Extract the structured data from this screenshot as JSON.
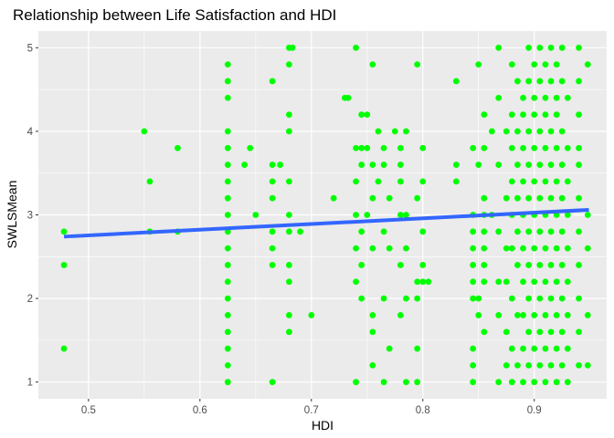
{
  "chart_data": {
    "type": "scatter",
    "title": "Relationship between Life Satisfaction and HDI",
    "xlabel": "HDI",
    "ylabel": "SWLSMean",
    "xlim": [
      0.455,
      0.965
    ],
    "ylim": [
      0.8,
      5.2
    ],
    "x_ticks": [
      0.5,
      0.6,
      0.7,
      0.8,
      0.9
    ],
    "x_tick_labels": [
      "0.5",
      "0.6",
      "0.7",
      "0.8",
      "0.9"
    ],
    "y_ticks": [
      1,
      2,
      3,
      4,
      5
    ],
    "y_tick_labels": [
      "1",
      "2",
      "3",
      "4",
      "5"
    ],
    "grid": true,
    "colors": {
      "points": "#00ff00",
      "trend": "#3366ff",
      "panel": "#ebebeb",
      "grid": "#ffffff"
    },
    "trend_line": {
      "x": [
        0.478,
        0.949
      ],
      "y": [
        2.74,
        3.06
      ]
    },
    "points": [
      [
        0.478,
        2.8
      ],
      [
        0.478,
        2.4
      ],
      [
        0.478,
        1.4
      ],
      [
        0.55,
        4.0
      ],
      [
        0.555,
        3.4
      ],
      [
        0.555,
        2.8
      ],
      [
        0.58,
        3.8
      ],
      [
        0.58,
        2.8
      ],
      [
        0.625,
        4.8
      ],
      [
        0.625,
        4.6
      ],
      [
        0.625,
        4.4
      ],
      [
        0.625,
        4.0
      ],
      [
        0.625,
        3.8
      ],
      [
        0.625,
        3.6
      ],
      [
        0.625,
        3.4
      ],
      [
        0.625,
        3.2
      ],
      [
        0.625,
        3.0
      ],
      [
        0.625,
        2.8
      ],
      [
        0.625,
        2.6
      ],
      [
        0.625,
        2.4
      ],
      [
        0.625,
        2.2
      ],
      [
        0.625,
        2.0
      ],
      [
        0.625,
        1.8
      ],
      [
        0.625,
        1.6
      ],
      [
        0.625,
        1.4
      ],
      [
        0.625,
        1.2
      ],
      [
        0.625,
        1.0
      ],
      [
        0.64,
        3.6
      ],
      [
        0.645,
        3.8
      ],
      [
        0.65,
        3.0
      ],
      [
        0.665,
        4.6
      ],
      [
        0.665,
        3.6
      ],
      [
        0.665,
        3.4
      ],
      [
        0.665,
        3.2
      ],
      [
        0.665,
        2.8
      ],
      [
        0.665,
        2.6
      ],
      [
        0.665,
        2.4
      ],
      [
        0.665,
        1.0
      ],
      [
        0.672,
        3.6
      ],
      [
        0.68,
        5.0
      ],
      [
        0.68,
        4.8
      ],
      [
        0.68,
        4.2
      ],
      [
        0.68,
        4.0
      ],
      [
        0.68,
        3.4
      ],
      [
        0.68,
        3.0
      ],
      [
        0.68,
        2.8
      ],
      [
        0.68,
        2.4
      ],
      [
        0.68,
        2.2
      ],
      [
        0.68,
        1.8
      ],
      [
        0.68,
        1.6
      ],
      [
        0.683,
        5.0
      ],
      [
        0.69,
        2.8
      ],
      [
        0.7,
        1.8
      ],
      [
        0.72,
        3.2
      ],
      [
        0.73,
        4.4
      ],
      [
        0.733,
        4.4
      ],
      [
        0.74,
        5.0
      ],
      [
        0.74,
        3.8
      ],
      [
        0.74,
        3.4
      ],
      [
        0.74,
        3.0
      ],
      [
        0.74,
        2.6
      ],
      [
        0.74,
        2.2
      ],
      [
        0.74,
        1.0
      ],
      [
        0.745,
        4.2
      ],
      [
        0.745,
        3.8
      ],
      [
        0.745,
        3.6
      ],
      [
        0.745,
        2.8
      ],
      [
        0.745,
        2.4
      ],
      [
        0.745,
        2.0
      ],
      [
        0.75,
        4.2
      ],
      [
        0.75,
        3.8
      ],
      [
        0.75,
        3.0
      ],
      [
        0.755,
        4.8
      ],
      [
        0.755,
        3.6
      ],
      [
        0.755,
        3.2
      ],
      [
        0.755,
        2.6
      ],
      [
        0.755,
        1.8
      ],
      [
        0.755,
        1.6
      ],
      [
        0.755,
        1.2
      ],
      [
        0.76,
        4.0
      ],
      [
        0.76,
        3.4
      ],
      [
        0.765,
        3.8
      ],
      [
        0.765,
        3.6
      ],
      [
        0.765,
        2.8
      ],
      [
        0.765,
        2.0
      ],
      [
        0.765,
        1.0
      ],
      [
        0.77,
        3.2
      ],
      [
        0.77,
        2.6
      ],
      [
        0.77,
        1.4
      ],
      [
        0.775,
        4.0
      ],
      [
        0.78,
        3.8
      ],
      [
        0.78,
        3.6
      ],
      [
        0.78,
        3.4
      ],
      [
        0.78,
        3.0
      ],
      [
        0.78,
        2.4
      ],
      [
        0.78,
        1.8
      ],
      [
        0.785,
        4.0
      ],
      [
        0.785,
        3.0
      ],
      [
        0.785,
        2.6
      ],
      [
        0.785,
        2.0
      ],
      [
        0.785,
        1.0
      ],
      [
        0.795,
        4.8
      ],
      [
        0.795,
        3.2
      ],
      [
        0.795,
        2.2
      ],
      [
        0.795,
        2.0
      ],
      [
        0.795,
        1.4
      ],
      [
        0.795,
        1.0
      ],
      [
        0.8,
        3.8
      ],
      [
        0.8,
        3.4
      ],
      [
        0.8,
        2.8
      ],
      [
        0.8,
        2.4
      ],
      [
        0.8,
        2.2
      ],
      [
        0.805,
        2.2
      ],
      [
        0.83,
        4.6
      ],
      [
        0.83,
        3.6
      ],
      [
        0.83,
        3.4
      ],
      [
        0.845,
        3.8
      ],
      [
        0.845,
        3.0
      ],
      [
        0.845,
        2.8
      ],
      [
        0.845,
        2.6
      ],
      [
        0.845,
        2.4
      ],
      [
        0.845,
        2.2
      ],
      [
        0.845,
        2.0
      ],
      [
        0.845,
        1.4
      ],
      [
        0.845,
        1.2
      ],
      [
        0.845,
        1.0
      ],
      [
        0.85,
        4.8
      ],
      [
        0.85,
        3.6
      ],
      [
        0.85,
        2.0
      ],
      [
        0.85,
        1.8
      ],
      [
        0.855,
        4.2
      ],
      [
        0.855,
        3.8
      ],
      [
        0.855,
        3.2
      ],
      [
        0.855,
        3.0
      ],
      [
        0.855,
        2.8
      ],
      [
        0.855,
        2.6
      ],
      [
        0.855,
        2.4
      ],
      [
        0.855,
        2.2
      ],
      [
        0.855,
        1.6
      ],
      [
        0.862,
        4.0
      ],
      [
        0.862,
        3.0
      ],
      [
        0.868,
        5.0
      ],
      [
        0.868,
        4.4
      ],
      [
        0.868,
        3.6
      ],
      [
        0.868,
        2.8
      ],
      [
        0.868,
        2.2
      ],
      [
        0.868,
        1.8
      ],
      [
        0.868,
        1.0
      ],
      [
        0.875,
        4.0
      ],
      [
        0.875,
        3.2
      ],
      [
        0.875,
        2.6
      ],
      [
        0.875,
        2.2
      ],
      [
        0.875,
        1.6
      ],
      [
        0.875,
        1.2
      ],
      [
        0.88,
        4.8
      ],
      [
        0.88,
        4.2
      ],
      [
        0.88,
        3.8
      ],
      [
        0.88,
        3.4
      ],
      [
        0.88,
        3.0
      ],
      [
        0.88,
        2.6
      ],
      [
        0.88,
        2.0
      ],
      [
        0.88,
        1.4
      ],
      [
        0.88,
        1.0
      ],
      [
        0.885,
        4.6
      ],
      [
        0.885,
        4.0
      ],
      [
        0.885,
        3.6
      ],
      [
        0.885,
        3.2
      ],
      [
        0.885,
        2.8
      ],
      [
        0.885,
        2.4
      ],
      [
        0.885,
        1.8
      ],
      [
        0.885,
        1.2
      ],
      [
        0.89,
        4.4
      ],
      [
        0.89,
        4.2
      ],
      [
        0.89,
        3.8
      ],
      [
        0.89,
        3.4
      ],
      [
        0.89,
        3.0
      ],
      [
        0.89,
        2.6
      ],
      [
        0.89,
        2.2
      ],
      [
        0.89,
        1.8
      ],
      [
        0.89,
        1.4
      ],
      [
        0.89,
        1.0
      ],
      [
        0.895,
        5.0
      ],
      [
        0.895,
        4.6
      ],
      [
        0.895,
        4.0
      ],
      [
        0.895,
        3.6
      ],
      [
        0.895,
        3.2
      ],
      [
        0.895,
        2.8
      ],
      [
        0.895,
        2.4
      ],
      [
        0.895,
        2.0
      ],
      [
        0.895,
        1.6
      ],
      [
        0.895,
        1.2
      ],
      [
        0.9,
        4.8
      ],
      [
        0.9,
        4.4
      ],
      [
        0.9,
        4.2
      ],
      [
        0.9,
        3.8
      ],
      [
        0.9,
        3.4
      ],
      [
        0.9,
        3.0
      ],
      [
        0.9,
        2.6
      ],
      [
        0.9,
        2.2
      ],
      [
        0.9,
        1.8
      ],
      [
        0.9,
        1.4
      ],
      [
        0.9,
        1.0
      ],
      [
        0.905,
        5.0
      ],
      [
        0.905,
        4.6
      ],
      [
        0.905,
        4.0
      ],
      [
        0.905,
        3.6
      ],
      [
        0.905,
        3.2
      ],
      [
        0.905,
        2.8
      ],
      [
        0.905,
        2.4
      ],
      [
        0.905,
        2.0
      ],
      [
        0.905,
        1.6
      ],
      [
        0.905,
        1.2
      ],
      [
        0.91,
        4.8
      ],
      [
        0.91,
        4.4
      ],
      [
        0.91,
        4.2
      ],
      [
        0.91,
        3.8
      ],
      [
        0.91,
        3.4
      ],
      [
        0.91,
        3.0
      ],
      [
        0.91,
        2.6
      ],
      [
        0.91,
        2.2
      ],
      [
        0.91,
        1.8
      ],
      [
        0.91,
        1.4
      ],
      [
        0.91,
        1.0
      ],
      [
        0.915,
        5.0
      ],
      [
        0.915,
        4.6
      ],
      [
        0.915,
        4.0
      ],
      [
        0.915,
        3.6
      ],
      [
        0.915,
        3.2
      ],
      [
        0.915,
        2.8
      ],
      [
        0.915,
        2.4
      ],
      [
        0.915,
        2.0
      ],
      [
        0.915,
        1.6
      ],
      [
        0.915,
        1.2
      ],
      [
        0.92,
        4.8
      ],
      [
        0.92,
        4.4
      ],
      [
        0.92,
        4.2
      ],
      [
        0.92,
        3.8
      ],
      [
        0.92,
        3.4
      ],
      [
        0.92,
        3.0
      ],
      [
        0.92,
        2.6
      ],
      [
        0.92,
        2.2
      ],
      [
        0.92,
        1.8
      ],
      [
        0.92,
        1.4
      ],
      [
        0.92,
        1.0
      ],
      [
        0.925,
        5.0
      ],
      [
        0.925,
        4.6
      ],
      [
        0.925,
        4.0
      ],
      [
        0.925,
        3.6
      ],
      [
        0.925,
        3.2
      ],
      [
        0.925,
        2.8
      ],
      [
        0.925,
        2.4
      ],
      [
        0.925,
        2.0
      ],
      [
        0.925,
        1.6
      ],
      [
        0.925,
        1.2
      ],
      [
        0.93,
        4.4
      ],
      [
        0.93,
        3.8
      ],
      [
        0.93,
        3.4
      ],
      [
        0.93,
        3.0
      ],
      [
        0.93,
        2.6
      ],
      [
        0.93,
        2.2
      ],
      [
        0.93,
        1.8
      ],
      [
        0.93,
        1.4
      ],
      [
        0.93,
        1.0
      ],
      [
        0.94,
        5.0
      ],
      [
        0.94,
        4.6
      ],
      [
        0.94,
        4.2
      ],
      [
        0.94,
        3.8
      ],
      [
        0.94,
        3.6
      ],
      [
        0.94,
        3.2
      ],
      [
        0.94,
        2.8
      ],
      [
        0.94,
        2.4
      ],
      [
        0.94,
        2.0
      ],
      [
        0.94,
        1.6
      ],
      [
        0.94,
        1.2
      ],
      [
        0.948,
        4.8
      ],
      [
        0.948,
        3.0
      ],
      [
        0.948,
        2.6
      ],
      [
        0.948,
        1.8
      ],
      [
        0.948,
        1.2
      ]
    ]
  }
}
